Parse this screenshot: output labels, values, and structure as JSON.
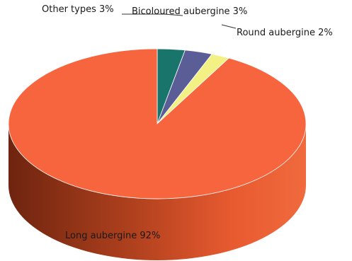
{
  "chart_data": {
    "type": "pie",
    "title": "",
    "style": "3d-cylinder",
    "slices": [
      {
        "label": "Long aubergine 92%",
        "value": 92,
        "color": "#F7653F",
        "side_color": "#8A2C12"
      },
      {
        "label": "Other types 3%",
        "value": 3,
        "color": "#19746B",
        "side_color": "#0C3A35"
      },
      {
        "label": "Bicoloured aubergine 3%",
        "value": 3,
        "color": "#5B5D96",
        "side_color": "#2E2F4E"
      },
      {
        "label": "Round aubergine 2%",
        "value": 2,
        "color": "#F3F184",
        "side_color": "#8E8C3C"
      }
    ]
  }
}
